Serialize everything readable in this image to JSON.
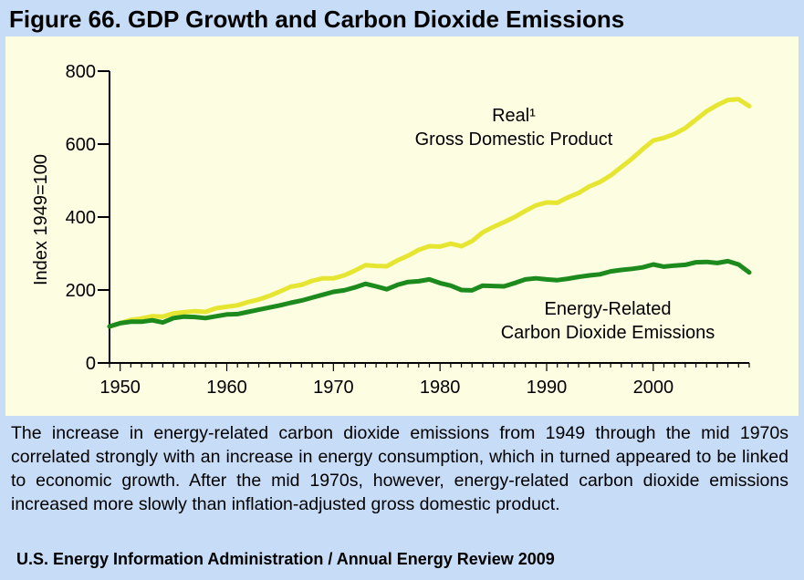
{
  "figure": {
    "title": "Figure 66.  GDP Growth and Carbon Dioxide Emissions",
    "caption": "The increase in energy-related carbon dioxide emissions from 1949 through the mid 1970s correlated strongly with an increase in energy consumption, which in turned appeared to be linked to economic growth.  After the mid 1970s, however, energy-related carbon dioxide emissions increased more slowly than inflation-adjusted gross domestic product.",
    "source": "U.S. Energy Information Administration / Annual Energy Review 2009"
  },
  "chart_data": {
    "type": "line",
    "title": "Figure 66.  GDP Growth and Carbon Dioxide Emissions",
    "ylabel": "Index 1949=100",
    "xlabel": "",
    "xlim": [
      1949,
      2009
    ],
    "ylim": [
      0,
      800
    ],
    "x_ticks": [
      1950,
      1960,
      1970,
      1980,
      1990,
      2000
    ],
    "y_ticks": [
      0,
      200,
      400,
      600,
      800
    ],
    "grid": false,
    "x": [
      1949,
      1950,
      1951,
      1952,
      1953,
      1954,
      1955,
      1956,
      1957,
      1958,
      1959,
      1960,
      1961,
      1962,
      1963,
      1964,
      1965,
      1966,
      1967,
      1968,
      1969,
      1970,
      1971,
      1972,
      1973,
      1974,
      1975,
      1976,
      1977,
      1978,
      1979,
      1980,
      1981,
      1982,
      1983,
      1984,
      1985,
      1986,
      1987,
      1988,
      1989,
      1990,
      1991,
      1992,
      1993,
      1994,
      1995,
      1996,
      1997,
      1998,
      1999,
      2000,
      2001,
      2002,
      2003,
      2004,
      2005,
      2006,
      2007,
      2008,
      2009
    ],
    "series": [
      {
        "name": "Real¹ Gross Domestic Product",
        "label_lines": [
          "Real¹",
          "Gross Domestic Product"
        ],
        "color": "#e6e632",
        "values": [
          100,
          109,
          118,
          122,
          128,
          127,
          136,
          139,
          142,
          140,
          150,
          154,
          158,
          167,
          174,
          184,
          196,
          209,
          214,
          225,
          232,
          232,
          240,
          253,
          268,
          266,
          265,
          281,
          294,
          310,
          320,
          319,
          327,
          320,
          334,
          358,
          373,
          386,
          400,
          417,
          432,
          440,
          439,
          454,
          466,
          484,
          496,
          514,
          537,
          560,
          586,
          610,
          617,
          628,
          644,
          667,
          690,
          707,
          721,
          723,
          704
        ]
      },
      {
        "name": "Energy-Related Carbon Dioxide Emissions",
        "label_lines": [
          "Energy-Related",
          "Carbon Dioxide Emissions"
        ],
        "color": "#1c8a1c",
        "values": [
          100,
          109,
          113,
          113,
          117,
          111,
          123,
          127,
          126,
          123,
          128,
          133,
          134,
          140,
          146,
          152,
          158,
          165,
          171,
          179,
          187,
          195,
          199,
          207,
          217,
          210,
          202,
          214,
          222,
          224,
          229,
          219,
          212,
          200,
          199,
          212,
          211,
          210,
          219,
          229,
          232,
          229,
          227,
          231,
          236,
          240,
          243,
          251,
          255,
          258,
          262,
          270,
          264,
          267,
          269,
          276,
          277,
          274,
          279,
          270,
          248
        ]
      }
    ]
  }
}
